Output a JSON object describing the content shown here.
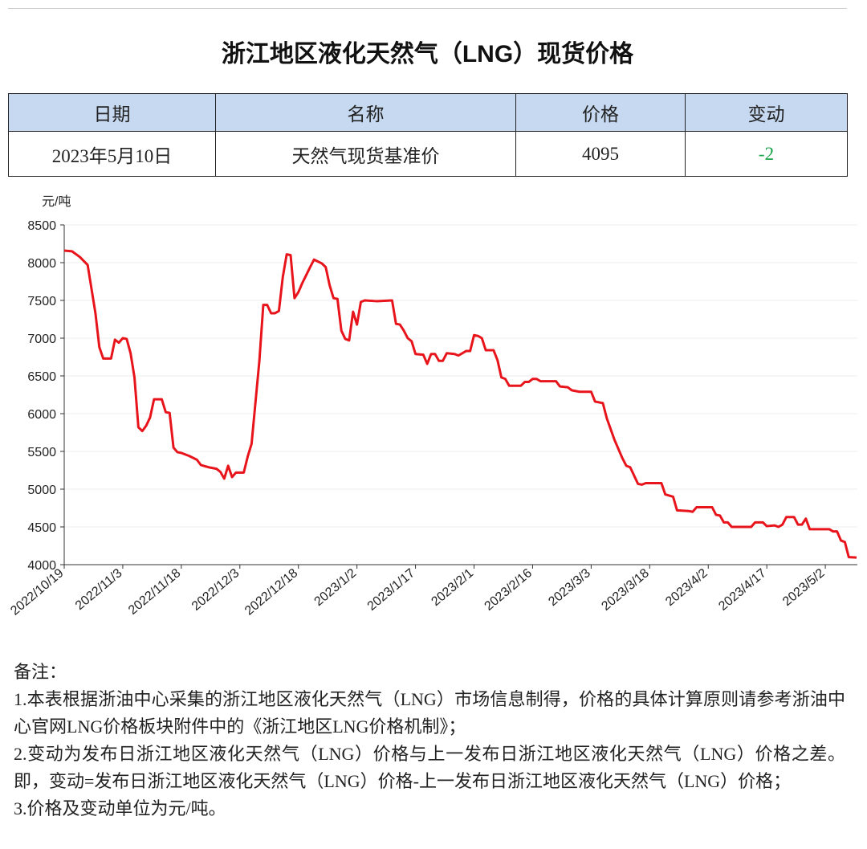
{
  "header": {
    "title": "浙江地区液化天然气（LNG）现货价格"
  },
  "table": {
    "columns": [
      "日期",
      "名称",
      "价格",
      "变动"
    ],
    "rows": [
      [
        "2023年5月10日",
        "天然气现货基准价",
        4095,
        -2
      ]
    ]
  },
  "chart_data": {
    "type": "line",
    "y_label": "元/吨",
    "color": "#e8141b",
    "grid": true,
    "x": [
      "2022/10/19",
      "2022/10/21",
      "2022/10/23",
      "2022/10/25",
      "2022/10/27",
      "2022/10/28",
      "2022/10/29",
      "2022/10/31",
      "2022/11/1",
      "2022/11/2",
      "2022/11/3",
      "2022/11/4",
      "2022/11/5",
      "2022/11/6",
      "2022/11/7",
      "2022/11/8",
      "2022/11/9",
      "2022/11/10",
      "2022/11/11",
      "2022/11/13",
      "2022/11/14",
      "2022/11/15",
      "2022/11/16",
      "2022/11/17",
      "2022/11/18",
      "2022/11/20",
      "2022/11/22",
      "2022/11/23",
      "2022/11/25",
      "2022/11/27",
      "2022/11/28",
      "2022/11/29",
      "2022/11/30",
      "2022/12/1",
      "2022/12/2",
      "2022/12/4",
      "2022/12/5",
      "2022/12/6",
      "2022/12/8",
      "2022/12/9",
      "2022/12/10",
      "2022/12/11",
      "2022/12/12",
      "2022/12/13",
      "2022/12/14",
      "2022/12/15",
      "2022/12/16",
      "2022/12/17",
      "2022/12/18",
      "2022/12/19",
      "2022/12/21",
      "2022/12/22",
      "2022/12/24",
      "2022/12/25",
      "2022/12/26",
      "2022/12/27",
      "2022/12/28",
      "2022/12/29",
      "2022/12/30",
      "2022/12/31",
      "2023/1/1",
      "2023/1/2",
      "2023/1/3",
      "2023/1/4",
      "2023/1/7",
      "2023/1/11",
      "2023/1/12",
      "2023/1/13",
      "2023/1/14",
      "2023/1/15",
      "2023/1/16",
      "2023/1/17",
      "2023/1/19",
      "2023/1/20",
      "2023/1/21",
      "2023/1/22",
      "2023/1/23",
      "2023/1/24",
      "2023/1/25",
      "2023/1/27",
      "2023/1/28",
      "2023/1/30",
      "2023/1/31",
      "2023/2/1",
      "2023/2/2",
      "2023/2/3",
      "2023/2/4",
      "2023/2/6",
      "2023/2/7",
      "2023/2/8",
      "2023/2/9",
      "2023/2/10",
      "2023/2/13",
      "2023/2/14",
      "2023/2/15",
      "2023/2/16",
      "2023/2/17",
      "2023/2/18",
      "2023/2/22",
      "2023/2/23",
      "2023/2/25",
      "2023/2/26",
      "2023/2/28",
      "2023/3/3",
      "2023/3/4",
      "2023/3/6",
      "2023/3/7",
      "2023/3/9",
      "2023/3/11",
      "2023/3/12",
      "2023/3/13",
      "2023/3/15",
      "2023/3/16",
      "2023/3/17",
      "2023/3/21",
      "2023/3/22",
      "2023/3/24",
      "2023/3/25",
      "2023/3/28",
      "2023/3/29",
      "2023/3/30",
      "2023/4/3",
      "2023/4/4",
      "2023/4/5",
      "2023/4/6",
      "2023/4/7",
      "2023/4/8",
      "2023/4/13",
      "2023/4/14",
      "2023/4/16",
      "2023/4/17",
      "2023/4/19",
      "2023/4/20",
      "2023/4/21",
      "2023/4/22",
      "2023/4/24",
      "2023/4/25",
      "2023/4/26",
      "2023/4/27",
      "2023/4/28",
      "2023/5/3",
      "2023/5/4",
      "2023/5/5",
      "2023/5/6",
      "2023/5/7",
      "2023/5/8",
      "2023/5/9",
      "2023/5/10"
    ],
    "values": [
      8160,
      8150,
      8075,
      7970,
      7330,
      6880,
      6730,
      6730,
      6980,
      6940,
      7000,
      6990,
      6800,
      6480,
      5820,
      5770,
      5840,
      5950,
      6190,
      6190,
      6020,
      6010,
      5550,
      5490,
      5480,
      5440,
      5390,
      5320,
      5290,
      5270,
      5230,
      5140,
      5310,
      5160,
      5220,
      5220,
      5430,
      5600,
      6700,
      7440,
      7440,
      7330,
      7330,
      7360,
      7810,
      8110,
      8100,
      7530,
      7610,
      7730,
      7940,
      8040,
      7990,
      7940,
      7700,
      7530,
      7520,
      7100,
      6990,
      6970,
      7350,
      7180,
      7480,
      7500,
      7490,
      7500,
      7190,
      7180,
      7100,
      7000,
      6960,
      6790,
      6780,
      6660,
      6790,
      6790,
      6700,
      6700,
      6800,
      6790,
      6770,
      6830,
      6830,
      7040,
      7030,
      7000,
      6840,
      6840,
      6710,
      6480,
      6460,
      6370,
      6370,
      6420,
      6420,
      6460,
      6460,
      6430,
      6430,
      6360,
      6350,
      6310,
      6290,
      6290,
      6160,
      6140,
      5940,
      5650,
      5410,
      5310,
      5290,
      5070,
      5060,
      5080,
      5080,
      4930,
      4900,
      4720,
      4710,
      4700,
      4760,
      4760,
      4660,
      4650,
      4560,
      4560,
      4500,
      4500,
      4560,
      4560,
      4510,
      4520,
      4500,
      4530,
      4630,
      4630,
      4530,
      4530,
      4610,
      4470,
      4470,
      4440,
      4440,
      4320,
      4300,
      4100,
      4097,
      4095
    ],
    "xlim": [
      "2022/10/19",
      "2023/5/10"
    ],
    "xticks": [
      "2022/10/19",
      "2022/11/3",
      "2022/11/18",
      "2022/12/3",
      "2022/12/18",
      "2023/1/2",
      "2023/1/17",
      "2023/2/1",
      "2023/2/16",
      "2023/3/3",
      "2023/3/18",
      "2023/4/2",
      "2023/4/17",
      "2023/5/2"
    ],
    "ylim": [
      4000,
      8500
    ],
    "yticks": [
      4000,
      4500,
      5000,
      5500,
      6000,
      6500,
      7000,
      7500,
      8000,
      8500
    ]
  },
  "notes": [
    "备注：",
    "1.本表根据浙油中心采集的浙江地区液化天然气（LNG）市场信息制得，价格的具体计算原则请参考浙油中心官网LNG价格板块附件中的《浙江地区LNG价格机制》；",
    "2.变动为发布日浙江地区液化天然气（LNG）价格与上一发布日浙江地区液化天然气（LNG）价格之差。即，变动=发布日浙江地区液化天然气（LNG）价格-上一发布日浙江地区液化天然气（LNG）价格；",
    "3.价格及变动单位为元/吨。"
  ]
}
